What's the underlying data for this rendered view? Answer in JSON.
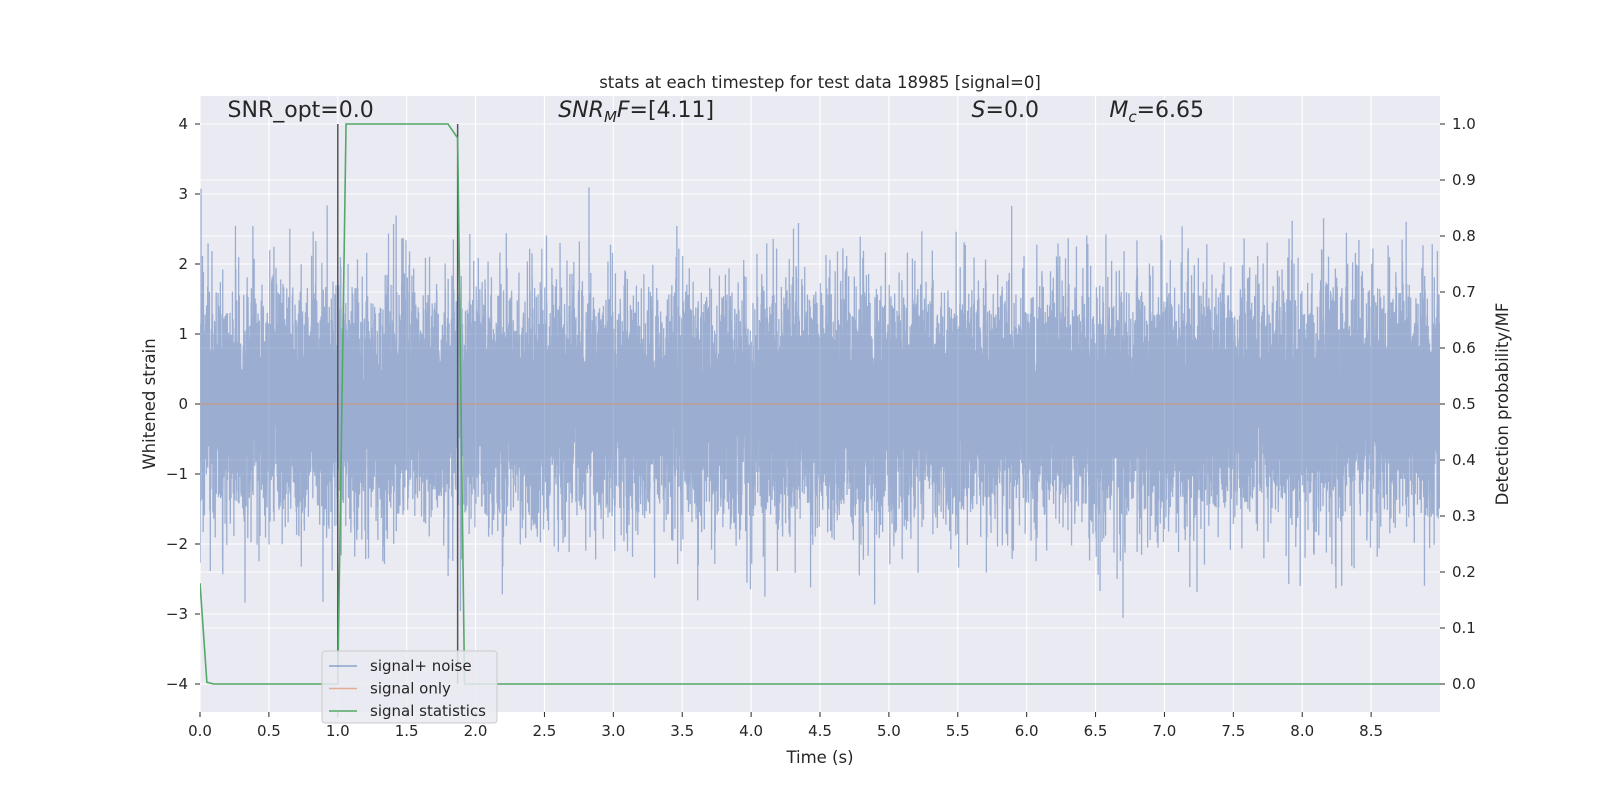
{
  "chart_data": {
    "type": "line",
    "title": "stats at each timestep for test data 18985 [signal=0]",
    "xlabel": "Time (s)",
    "ylabel": "Whitened strain",
    "ylabel_right": "Detection probability/MF",
    "xlim": [
      0.0,
      9.0
    ],
    "ylim": [
      -4.4,
      4.4
    ],
    "ylim_right": [
      -0.05,
      1.05
    ],
    "x_ticks": [
      0.0,
      0.5,
      1.0,
      1.5,
      2.0,
      2.5,
      3.0,
      3.5,
      4.0,
      4.5,
      5.0,
      5.5,
      6.0,
      6.5,
      7.0,
      7.5,
      8.0,
      8.5
    ],
    "x_tick_labels": [
      "0.0",
      "0.5",
      "1.0",
      "1.5",
      "2.0",
      "2.5",
      "3.0",
      "3.5",
      "4.0",
      "4.5",
      "5.0",
      "5.5",
      "6.0",
      "6.5",
      "7.0",
      "7.5",
      "8.0",
      "8.5"
    ],
    "y_ticks": [
      4,
      3,
      2,
      1,
      0,
      -1,
      -2,
      -3,
      -4
    ],
    "y_tick_labels": [
      "4",
      "3",
      "2",
      "1",
      "0",
      "−1",
      "−2",
      "−3",
      "−4"
    ],
    "y_right_ticks": [
      1.0,
      0.9,
      0.8,
      0.7,
      0.6,
      0.5,
      0.4,
      0.3,
      0.2,
      0.1,
      0.0
    ],
    "y_right_tick_labels": [
      "1.0",
      "0.9",
      "0.8",
      "0.7",
      "0.6",
      "0.5",
      "0.4",
      "0.3",
      "0.2",
      "0.1",
      "0.0"
    ],
    "grid": true,
    "legend_position": "lower-left",
    "annotations": [
      {
        "text": "SNR_opt=0.0",
        "x": 0.2,
        "y": 4.1,
        "math": false
      },
      {
        "text": "SNR_MF=[4.11]",
        "x": 2.6,
        "y": 4.1,
        "math": true,
        "parts": [
          {
            "t": "SNR",
            "style": "italic"
          },
          {
            "t": "M",
            "style": "sub-italic"
          },
          {
            "t": "F",
            "style": "italic"
          },
          {
            "t": "=[4.11]",
            "style": "normal"
          }
        ]
      },
      {
        "text": "S=0.0",
        "x": 5.6,
        "y": 4.1,
        "math": true,
        "parts": [
          {
            "t": "S",
            "style": "italic"
          },
          {
            "t": "=0.0",
            "style": "normal"
          }
        ]
      },
      {
        "text": "M_c=6.65",
        "x": 6.6,
        "y": 4.1,
        "math": true,
        "parts": [
          {
            "t": "M",
            "style": "italic"
          },
          {
            "t": "c",
            "style": "sub-italic"
          },
          {
            "t": "=6.65",
            "style": "normal"
          }
        ]
      }
    ],
    "vlines": [
      {
        "x": 1.0,
        "ymin": -4.0,
        "ymax": 4.0
      },
      {
        "x": 1.87,
        "ymin": -4.0,
        "ymax": 4.0
      }
    ],
    "series": [
      {
        "name": "signal+ noise",
        "axis": "left",
        "color": "#4c72b0",
        "alpha": 0.5,
        "kind": "noise",
        "sample_rate": 2048,
        "duration_s": 9.0,
        "std": 0.8
      },
      {
        "name": "signal only",
        "axis": "left",
        "color": "#dd8452",
        "alpha": 0.5,
        "x": [
          0.0,
          9.0
        ],
        "y": [
          0.0,
          0.0
        ]
      },
      {
        "name": "signal statistics",
        "axis": "right",
        "color": "#55a868",
        "x": [
          0.0,
          0.05,
          0.1,
          1.0,
          1.06,
          1.8,
          1.87,
          1.92,
          2.0,
          9.0
        ],
        "y": [
          0.18,
          0.003,
          0.0,
          0.0,
          1.0,
          1.0,
          0.975,
          0.0,
          0.0,
          0.0
        ]
      }
    ]
  }
}
